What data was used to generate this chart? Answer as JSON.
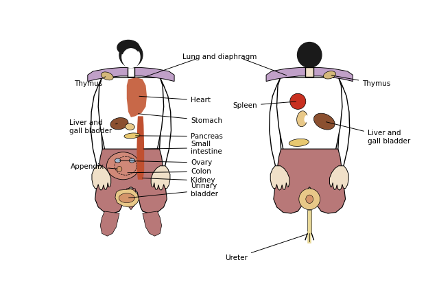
{
  "background_color": "#ffffff",
  "labels": {
    "lung_diaphragm": "Lung and diaphragm",
    "spleen": "Spleen",
    "heart": "Heart",
    "stomach": "Stomach",
    "pancreas": "Pancreas",
    "small_intestine": "Small\nintestine",
    "ovary": "Ovary",
    "colon": "Colon",
    "kidney": "Kidney",
    "urinary_bladder": "Urinary\nbladder",
    "ureter": "Ureter",
    "thymus_left": "Thymus",
    "thymus_right": "Thymus",
    "liver_gall_left": "Liver and\ngall bladder",
    "liver_gall_right": "Liver and\ngall bladder",
    "appendix": "Appendix"
  },
  "shoulder_purple": "#c0a0c8",
  "heart_red": "#c86848",
  "liver_brown": "#8b5030",
  "gallbladder_tan": "#e8c888",
  "pancreas_tan": "#e8c870",
  "spleen_red": "#c83020",
  "kidney_tan": "#e8c888",
  "kidney_brown": "#a05030",
  "colon_pink": "#d08878",
  "pelvic_mauve": "#b87878",
  "bladder_tan": "#e8c888",
  "ureter_tan": "#e8d898",
  "thymus_tan": "#d4b87a",
  "ovary_blue": "#a0b8d0",
  "small_intestine_red": "#c05030",
  "appendix_orange": "#d4956a",
  "skin_color": "#f0e0c8",
  "line_color": "#000000",
  "text_fontsize": 7.5,
  "body_lw": 1.0
}
